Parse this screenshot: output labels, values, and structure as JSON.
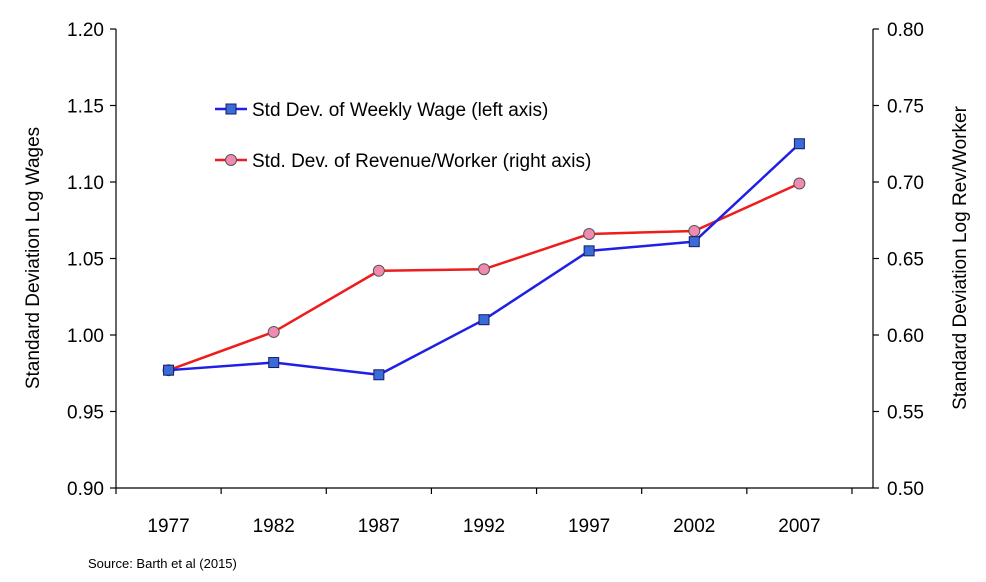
{
  "chart_data": {
    "type": "line",
    "categories": [
      "1977",
      "1982",
      "1987",
      "1992",
      "1997",
      "2002",
      "2007"
    ],
    "left_axis": {
      "label": "Standard Deviation Log Wages",
      "ylim": [
        0.9,
        1.2
      ],
      "ticks": [
        "0.90",
        "0.95",
        "1.00",
        "1.05",
        "1.10",
        "1.15",
        "1.20"
      ]
    },
    "right_axis": {
      "label": "Standard Deviation Log Rev/Worker",
      "ylim": [
        0.5,
        0.8
      ],
      "ticks": [
        "0.50",
        "0.55",
        "0.60",
        "0.65",
        "0.70",
        "0.75",
        "0.80"
      ]
    },
    "series": [
      {
        "name": "Std Dev. of Weekly Wage (left axis)",
        "axis": "left",
        "color": "#1f1fe6",
        "marker": "square",
        "marker_color": "#3a6cd8",
        "values": [
          0.977,
          0.982,
          0.974,
          1.01,
          1.055,
          1.061,
          1.125
        ]
      },
      {
        "name": "Std. Dev. of Revenue/Worker (right axis)",
        "axis": "right",
        "color": "#ee1c1c",
        "marker": "circle",
        "marker_color": "#f08ab0",
        "values": [
          0.577,
          0.602,
          0.642,
          0.643,
          0.666,
          0.668,
          0.699
        ]
      }
    ],
    "legend": "upper-left inside plot",
    "grid": false
  },
  "source_note": "Source: Barth et al (2015)"
}
